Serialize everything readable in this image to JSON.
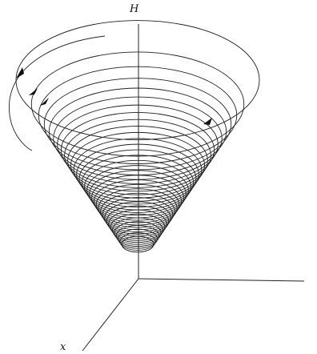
{
  "figure": {
    "axis_labels": {
      "vertical": "H",
      "depth": "x"
    },
    "rings": {
      "count": 34
    },
    "arrow_count": 4
  }
}
